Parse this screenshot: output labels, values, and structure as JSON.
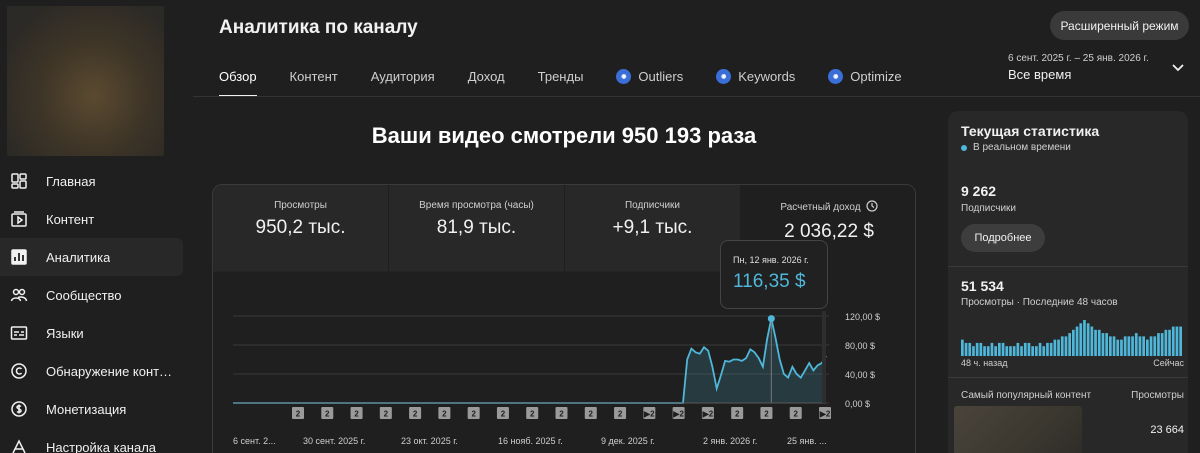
{
  "header": {
    "title": "Аналитика по каналу",
    "advanced_button": "Расширенный режим",
    "date_range": "6 сент. 2025 г. – 25 янв. 2026 г.",
    "period": "Все время"
  },
  "sidebar": {
    "items": [
      {
        "label": "Главная",
        "icon": "dashboard-icon",
        "active": false
      },
      {
        "label": "Контент",
        "icon": "content-icon",
        "active": false
      },
      {
        "label": "Аналитика",
        "icon": "analytics-icon",
        "active": true
      },
      {
        "label": "Сообщество",
        "icon": "community-icon",
        "active": false
      },
      {
        "label": "Языки",
        "icon": "subtitles-icon",
        "active": false
      },
      {
        "label": "Обнаружение контента",
        "icon": "copyright-icon",
        "active": false
      },
      {
        "label": "Монетизация",
        "icon": "dollar-icon",
        "active": false
      },
      {
        "label": "Настройка канала",
        "icon": "customization-icon",
        "active": false
      }
    ]
  },
  "tabs": [
    {
      "label": "Обзор",
      "active": true,
      "ext": false
    },
    {
      "label": "Контент",
      "active": false,
      "ext": false
    },
    {
      "label": "Аудитория",
      "active": false,
      "ext": false
    },
    {
      "label": "Доход",
      "active": false,
      "ext": false
    },
    {
      "label": "Тренды",
      "active": false,
      "ext": false
    },
    {
      "label": "Outliers",
      "active": false,
      "ext": true
    },
    {
      "label": "Keywords",
      "active": false,
      "ext": true
    },
    {
      "label": "Optimize",
      "active": false,
      "ext": true
    }
  ],
  "main": {
    "headline": "Ваши видео смотрели 950 193 раза",
    "metrics": [
      {
        "label": "Просмотры",
        "value": "950,2 тыс."
      },
      {
        "label": "Время просмотра (часы)",
        "value": "81,9 тыс."
      },
      {
        "label": "Подписчики",
        "value": "+9,1 тыс."
      },
      {
        "label": "Расчетный доход",
        "value": "2 036,22 $"
      }
    ],
    "tooltip": {
      "date": "Пн, 12 янв. 2026 г.",
      "value": "116,35 $"
    }
  },
  "chart_data": {
    "type": "area",
    "series": [
      {
        "name": "Расчетный доход",
        "color": "#4fb7d9"
      }
    ],
    "x": [
      "2025-09-06",
      "2025-09-13",
      "2025-09-20",
      "2025-09-27",
      "2025-10-04",
      "2025-10-11",
      "2025-10-18",
      "2025-10-25",
      "2025-11-01",
      "2025-11-08",
      "2025-11-15",
      "2025-11-22",
      "2025-11-29",
      "2025-12-06",
      "2025-12-13",
      "2025-12-20",
      "2025-12-22",
      "2025-12-23",
      "2025-12-24",
      "2025-12-25",
      "2025-12-26",
      "2025-12-27",
      "2025-12-28",
      "2025-12-29",
      "2025-12-30",
      "2025-12-31",
      "2026-01-01",
      "2026-01-02",
      "2026-01-03",
      "2026-01-04",
      "2026-01-05",
      "2026-01-06",
      "2026-01-07",
      "2026-01-08",
      "2026-01-09",
      "2026-01-10",
      "2026-01-11",
      "2026-01-12",
      "2026-01-13",
      "2026-01-14",
      "2026-01-15",
      "2026-01-16",
      "2026-01-17",
      "2026-01-18",
      "2026-01-19",
      "2026-01-20",
      "2026-01-21",
      "2026-01-22",
      "2026-01-23",
      "2026-01-24",
      "2026-01-25"
    ],
    "values": [
      0,
      0,
      0,
      0,
      0,
      0,
      0,
      0,
      0,
      0,
      0,
      0,
      0,
      0,
      0,
      0,
      0,
      60,
      75,
      70,
      68,
      77,
      72,
      50,
      20,
      38,
      58,
      57,
      60,
      60,
      58,
      62,
      74,
      70,
      62,
      50,
      88,
      116.35,
      90,
      60,
      40,
      35,
      50,
      40,
      35,
      45,
      55,
      45,
      52,
      55,
      65
    ],
    "xtick_labels": [
      "6 сент. 2...",
      "30 сент. 2025 г.",
      "23 окт. 2025 г.",
      "16 нояб. 2025 г.",
      "9 дек. 2025 г.",
      "2 янв. 2026 г.",
      "25 янв. ..."
    ],
    "yticks": [
      "0,00 $",
      "40,00 $",
      "80,00 $",
      "120,00 $"
    ],
    "ylim": [
      0,
      120
    ],
    "grid": true,
    "markers": [
      "2",
      "2",
      "2",
      "2",
      "2",
      "2",
      "2",
      "2",
      "2",
      "2",
      "2",
      "2",
      "▶2",
      "▶2",
      "▶2",
      "2",
      "2",
      "2",
      "▶2"
    ]
  },
  "panel": {
    "title": "Текущая статистика",
    "live": "В реальном времени",
    "subs_value": "9 262",
    "subs_label": "Подписчики",
    "more_button": "Подробнее",
    "views_value": "51 534",
    "views_label": "Просмотры · Последние 48 часов",
    "mini_left": "48 ч. назад",
    "mini_right": "Сейчас",
    "top_label": "Самый популярный контент",
    "top_col": "Просмотры",
    "top_value": "23 664",
    "mini_values": [
      5,
      4,
      4,
      3,
      4,
      4,
      3,
      3,
      4,
      3,
      4,
      4,
      3,
      3,
      3,
      4,
      3,
      4,
      4,
      3,
      3,
      4,
      3,
      4,
      4,
      5,
      5,
      6,
      6,
      7,
      8,
      9,
      10,
      11,
      10,
      9,
      8,
      8,
      7,
      7,
      6,
      6,
      5,
      5,
      6,
      6,
      6,
      7,
      6,
      6,
      5,
      6,
      6,
      7,
      7,
      8,
      8,
      9,
      9,
      9
    ]
  }
}
